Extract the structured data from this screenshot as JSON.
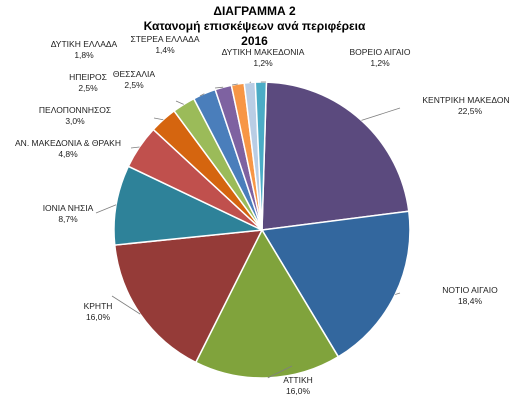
{
  "chart_data": {
    "type": "pie",
    "title": "ΔΙΑΓΡΑΜΜΑ 2",
    "subtitle": "Κατανομή επισκέψεων ανά περιφέρεια",
    "year": "2016",
    "slices": [
      {
        "name": "ΚΕΝΤΡΙΚΗ ΜΑΚΕΔΟΝΙΑ",
        "value": 22.5,
        "label": "22,5%",
        "color": "#5B4A7E"
      },
      {
        "name": "ΝΟΤΙΟ ΑΙΓΑΙΟ",
        "value": 18.4,
        "label": "18,4%",
        "color": "#33679E"
      },
      {
        "name": "ΑΤΤΙΚΗ",
        "value": 16.0,
        "label": "16,0%",
        "color": "#80A33C"
      },
      {
        "name": "ΚΡΗΤΗ",
        "value": 16.0,
        "label": "16,0%",
        "color": "#953B38"
      },
      {
        "name": "ΙΟΝΙΑ ΝΗΣΙΑ",
        "value": 8.7,
        "label": "8,7%",
        "color": "#2E8299"
      },
      {
        "name": "ΑΝ. ΜΑΚΕΔΟΝΙΑ & ΘΡΑΚΗ",
        "value": 4.8,
        "label": "4,8%",
        "color": "#C0504D"
      },
      {
        "name": "ΠΕΛΟΠΟΝΝΗΣΟΣ",
        "value": 3.0,
        "label": "3,0%",
        "color": "#D5650F"
      },
      {
        "name": "ΗΠΕΙΡΟΣ",
        "value": 2.5,
        "label": "2,5%",
        "color": "#9BBB59"
      },
      {
        "name": "ΘΕΣΣΑΛΙΑ",
        "value": 2.5,
        "label": "2,5%",
        "color": "#4A7EBB"
      },
      {
        "name": "ΔΥΤΙΚΗ ΕΛΛΑΔΑ",
        "value": 1.8,
        "label": "1,8%",
        "color": "#7E62A1"
      },
      {
        "name": "ΣΤΕΡΕΑ ΕΛΛΑΔΑ",
        "value": 1.4,
        "label": "1,4%",
        "color": "#F79646"
      },
      {
        "name": "ΔΥΤΙΚΗ ΜΑΚΕΔΟΝΙΑ",
        "value": 1.2,
        "label": "1,2%",
        "color": "#B9CDE5"
      },
      {
        "name": "ΒΟΡΕΙΟ ΑΙΓΑΙΟ",
        "value": 1.2,
        "label": "1,2%",
        "color": "#4BACC6"
      }
    ]
  }
}
